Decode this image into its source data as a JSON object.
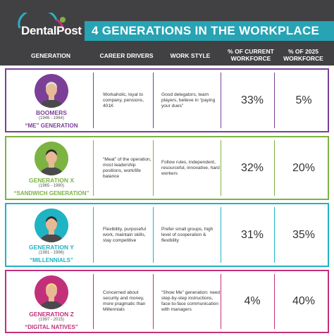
{
  "header": {
    "logo": "DentalPost",
    "title": "4 GENERATIONS IN THE WORKPLACE",
    "columns": [
      "GENERATION",
      "CAREER DRIVERS",
      "WORK STYLE",
      "% OF CURRENT WORKFORCE",
      "% OF 2025 WORKFORCE"
    ]
  },
  "rows": [
    {
      "name": "BOOMERS",
      "years": "(1946 - 1964)",
      "nickname": "“ME” GENERATION",
      "career_drivers": "Workaholic, loyal to company, pensions, 401K",
      "work_style": "Good delegators, team players, believe in “paying your dues”",
      "current": "33%",
      "future": "5%",
      "color": "#7b3f98"
    },
    {
      "name": "GENERATION X",
      "years": "(1965 - 1980)",
      "nickname": "“SANDWICH GENERATION”",
      "career_drivers": "“Meat” of the operation, most leadership positions, work/life balance",
      "work_style": "Follow rules, independent, resourceful, innovative, hard workers",
      "current": "32%",
      "future": "20%",
      "color": "#7cb342"
    },
    {
      "name": "GENERATION Y",
      "years": "(1981 - 1996)",
      "nickname": "“MILLENNIALS”",
      "career_drivers": "Flexibility, purposeful work, maintain skills, stay competitive",
      "work_style": "Prefer small groups, high level of cooperation & flexibility",
      "current": "31%",
      "future": "35%",
      "color": "#1fb3c4"
    },
    {
      "name": "GENERATION Z",
      "years": "(1997 - 2015)",
      "nickname": "“DIGITAL NATIVES”",
      "career_drivers": "Concerned about security and money, more pragmatic than Millennials",
      "work_style": "“Show Me” generation: need step-by-step instructions, face-to-face communication with managers",
      "current": "4%",
      "future": "40%",
      "color": "#c2307a"
    }
  ]
}
